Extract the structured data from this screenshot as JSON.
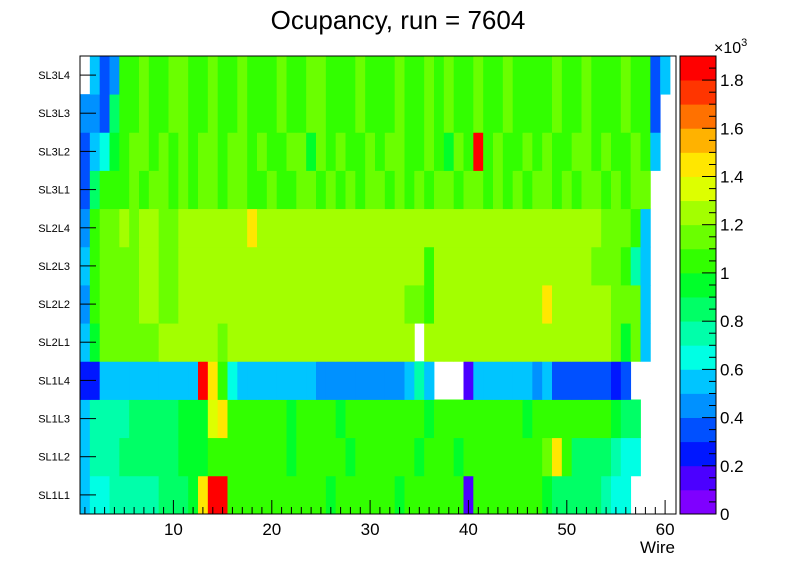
{
  "chart_data": {
    "type": "heatmap",
    "title": "Ocupancy, run = 7604",
    "xlabel": "Wire",
    "ylabel": "",
    "x_range": [
      1,
      60
    ],
    "x_ticks": [
      10,
      20,
      30,
      40,
      50,
      60
    ],
    "y_categories": [
      "SL1L1",
      "SL1L2",
      "SL1L3",
      "SL1L4",
      "SL2L1",
      "SL2L2",
      "SL2L3",
      "SL2L4",
      "SL3L1",
      "SL3L2",
      "SL3L3",
      "SL3L4"
    ],
    "colorbar": {
      "min": 0,
      "max": 1900,
      "exponent_label": "×10",
      "exponent_power": "3",
      "tick_values": [
        0,
        200,
        400,
        600,
        800,
        1000,
        1200,
        1400,
        1600,
        1800
      ],
      "tick_labels": [
        "0",
        "0.2",
        "0.4",
        "0.6",
        "0.8",
        "1",
        "1.2",
        "1.4",
        "1.6",
        "1.8"
      ],
      "palette": [
        "#7f00ff",
        "#4b00ff",
        "#0017ff",
        "#0050ff",
        "#0091ff",
        "#00c5ff",
        "#00ffe4",
        "#00ffaa",
        "#00ff66",
        "#00ff2a",
        "#32ff00",
        "#6aff00",
        "#a3ff00",
        "#ddff00",
        "#ffe700",
        "#ffb200",
        "#ff7100",
        "#ff3500",
        "#ff0000"
      ]
    },
    "notes": "values are estimated counts per wire per layer; null = empty cell",
    "rows": {
      "SL1L1": [
        520,
        660,
        690,
        700,
        760,
        760,
        780,
        780,
        800,
        840,
        820,
        920,
        1400,
        1800,
        1900,
        1040,
        1000,
        1020,
        1040,
        1000,
        1020,
        1000,
        1040,
        1020,
        1000,
        980,
        1020,
        1000,
        1040,
        1000,
        1020,
        1000,
        980,
        1020,
        1000,
        1040,
        1020,
        1000,
        1040,
        100,
        1040,
        1000,
        1020,
        1000,
        1040,
        1000,
        1040,
        900,
        880,
        820,
        840,
        800,
        800,
        780,
        660,
        640,
        null,
        null,
        null,
        null
      ],
      "SL1L2": [
        560,
        740,
        760,
        780,
        820,
        820,
        840,
        860,
        840,
        880,
        900,
        900,
        900,
        1060,
        1040,
        1000,
        1020,
        1040,
        1000,
        1020,
        1000,
        980,
        1020,
        1000,
        1040,
        1020,
        1000,
        980,
        1020,
        1000,
        1040,
        1000,
        1020,
        1000,
        980,
        1020,
        1040,
        1000,
        980,
        1020,
        1000,
        1040,
        1020,
        1000,
        1040,
        1000,
        1000,
        1100,
        1420,
        1000,
        840,
        820,
        820,
        800,
        780,
        660,
        640,
        null,
        null,
        null
      ],
      "SL1L3": [
        560,
        740,
        760,
        780,
        780,
        820,
        840,
        860,
        860,
        880,
        900,
        900,
        900,
        1380,
        1460,
        1040,
        1020,
        1000,
        1040,
        1000,
        1020,
        980,
        1020,
        1040,
        1000,
        1020,
        980,
        1000,
        1040,
        1020,
        1000,
        1000,
        1020,
        1040,
        1000,
        980,
        1020,
        1000,
        1040,
        1020,
        1000,
        1000,
        1040,
        1020,
        1000,
        980,
        1020,
        1000,
        1040,
        1020,
        1000,
        1000,
        1020,
        1040,
        980,
        880,
        860,
        null,
        null,
        null
      ],
      "SL1L4": [
        200,
        220,
        500,
        500,
        500,
        500,
        500,
        500,
        500,
        540,
        540,
        540,
        1800,
        1480,
        1000,
        600,
        500,
        500,
        500,
        500,
        520,
        560,
        560,
        540,
        480,
        480,
        480,
        480,
        480,
        480,
        480,
        480,
        480,
        560,
        700,
        560,
        null,
        null,
        null,
        160,
        500,
        520,
        500,
        500,
        500,
        520,
        420,
        500,
        300,
        320,
        320,
        320,
        320,
        320,
        200,
        300,
        null,
        null,
        null,
        null
      ],
      "SL2L1": [
        560,
        940,
        1160,
        1120,
        1180,
        1140,
        1160,
        1180,
        1200,
        1260,
        1260,
        1240,
        1260,
        1240,
        1160,
        1200,
        1240,
        1260,
        1260,
        1260,
        1240,
        1260,
        1260,
        1260,
        1240,
        1260,
        1240,
        1260,
        1260,
        1260,
        1260,
        1260,
        1260,
        1260,
        null,
        1240,
        1260,
        1260,
        1240,
        1260,
        1260,
        1240,
        1260,
        1260,
        1240,
        1260,
        1260,
        1240,
        1260,
        1260,
        1240,
        1260,
        1260,
        1200,
        1100,
        980,
        1160,
        500,
        null,
        null
      ],
      "SL2L2": [
        440,
        1000,
        1140,
        1160,
        1180,
        1160,
        1200,
        1200,
        1160,
        1180,
        1200,
        1200,
        1240,
        1260,
        1260,
        1220,
        1260,
        1260,
        1240,
        1200,
        1260,
        1200,
        1200,
        1200,
        1260,
        1260,
        1240,
        1260,
        1240,
        1260,
        1260,
        1240,
        1200,
        1160,
        1160,
        1060,
        1200,
        1240,
        1260,
        1240,
        1260,
        1260,
        1240,
        1260,
        1260,
        1260,
        1240,
        1400,
        1260,
        1200,
        1240,
        1260,
        1220,
        1200,
        1160,
        1100,
        1120,
        560,
        null,
        null
      ],
      "SL2L3": [
        520,
        1000,
        1140,
        1160,
        1180,
        1160,
        1200,
        1200,
        1160,
        1180,
        1200,
        1200,
        1240,
        1200,
        1200,
        1240,
        1260,
        1260,
        1240,
        1260,
        1260,
        1200,
        1200,
        1200,
        1260,
        1260,
        1240,
        1260,
        1240,
        1260,
        1260,
        1240,
        1200,
        1240,
        1260,
        1060,
        1200,
        1240,
        1260,
        1240,
        1260,
        1260,
        1200,
        1260,
        1260,
        1260,
        1240,
        1260,
        1260,
        1200,
        1240,
        1260,
        1100,
        1100,
        1160,
        1000,
        740,
        520,
        null,
        null
      ],
      "SL2L4": [
        440,
        1000,
        1140,
        1160,
        1200,
        1160,
        1200,
        1200,
        1160,
        1180,
        1200,
        1200,
        1260,
        1260,
        1260,
        1260,
        1260,
        1400,
        1260,
        1260,
        1260,
        1260,
        1260,
        1260,
        1240,
        1260,
        1260,
        1240,
        1260,
        1240,
        1260,
        1260,
        1260,
        1240,
        1260,
        1200,
        1260,
        1260,
        1260,
        1200,
        1260,
        1260,
        1260,
        1260,
        1240,
        1260,
        1260,
        1260,
        1260,
        1260,
        1260,
        1260,
        1200,
        1160,
        1160,
        1100,
        1000,
        500,
        null,
        null
      ],
      "SL3L1": [
        380,
        860,
        1040,
        1060,
        1080,
        1100,
        1080,
        1100,
        1100,
        1080,
        1100,
        1080,
        1100,
        1100,
        1080,
        1100,
        1100,
        1060,
        1080,
        1100,
        1060,
        1080,
        1100,
        1100,
        1080,
        1100,
        1060,
        1100,
        1080,
        1100,
        1100,
        1080,
        1100,
        1060,
        1100,
        1080,
        1100,
        1100,
        1080,
        1100,
        1100,
        1080,
        1100,
        1060,
        1100,
        1080,
        1100,
        1100,
        1080,
        1100,
        1080,
        1100,
        1100,
        1080,
        1100,
        1060,
        1100,
        1100,
        null,
        null
      ],
      "SL3L2": [
        380,
        560,
        600,
        980,
        1080,
        1100,
        1120,
        1080,
        1140,
        1080,
        1100,
        1060,
        1140,
        1100,
        1080,
        1100,
        1120,
        1080,
        1100,
        1060,
        1080,
        1100,
        1100,
        940,
        1100,
        1080,
        1100,
        1060,
        1080,
        1100,
        1080,
        1100,
        1120,
        1080,
        1060,
        1100,
        1080,
        940,
        1100,
        1060,
        1880,
        1080,
        1100,
        1080,
        1060,
        1100,
        1080,
        1100,
        1060,
        1080,
        1100,
        1120,
        1080,
        1100,
        1080,
        1060,
        1100,
        1080,
        500,
        null
      ],
      "SL3L3": [
        400,
        400,
        300,
        880,
        1040,
        1080,
        1100,
        1080,
        1040,
        1100,
        1100,
        1080,
        1080,
        1100,
        1040,
        1080,
        1100,
        1080,
        1040,
        1080,
        1100,
        1080,
        1040,
        1100,
        1100,
        1080,
        1040,
        1080,
        1100,
        1080,
        1040,
        1080,
        1100,
        1080,
        1040,
        1100,
        1080,
        1100,
        1040,
        1080,
        1100,
        1080,
        1040,
        1100,
        1080,
        1080,
        1040,
        1080,
        1100,
        1080,
        1040,
        1100,
        1080,
        1080,
        1040,
        1100,
        1080,
        1040,
        300,
        null
      ],
      "SL3L4": [
        null,
        560,
        300,
        460,
        1040,
        1080,
        1100,
        1080,
        1040,
        1100,
        1100,
        1080,
        1080,
        1100,
        1040,
        1080,
        1100,
        1080,
        1040,
        1080,
        1100,
        1080,
        1040,
        1100,
        1100,
        1080,
        1040,
        1080,
        1100,
        1080,
        1040,
        1080,
        1100,
        1080,
        1040,
        1100,
        1080,
        1100,
        1040,
        1080,
        1100,
        1080,
        1040,
        1100,
        1080,
        1080,
        1040,
        1080,
        1100,
        1080,
        1040,
        1100,
        1080,
        1080,
        1040,
        1100,
        1080,
        1040,
        300,
        560
      ]
    }
  }
}
